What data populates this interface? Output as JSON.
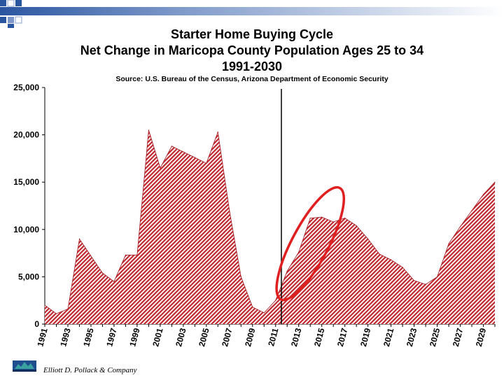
{
  "header": {
    "title_line1": "Starter Home Buying Cycle",
    "title_line2": "Net Change in Maricopa County Population Ages 25 to 34",
    "title_line3": "1991-2030",
    "source": "Source: U.S. Bureau of the Census, Arizona Department of Economic Security"
  },
  "footer": {
    "credit": "Elliott D. Pollack & Company"
  },
  "colors": {
    "fill": "#c0282f",
    "accent_blue": "#1f4e8f",
    "highlight": "#e02020"
  },
  "chart_data": {
    "type": "area",
    "title": "Starter Home Buying Cycle Net Change in Maricopa County Population Ages 25 to 34 1991-2030",
    "xlabel": "",
    "ylabel": "",
    "ylim": [
      0,
      25000
    ],
    "yticks": [
      0,
      5000,
      10000,
      15000,
      20000,
      25000
    ],
    "ytick_labels": [
      "0",
      "5,000",
      "10,000",
      "15,000",
      "20,000",
      "25,000"
    ],
    "xtick_labels": [
      "1991",
      "1993",
      "1995",
      "1997",
      "1999",
      "2001",
      "2003",
      "2005",
      "2007",
      "2009",
      "2011",
      "2013",
      "2015",
      "2017",
      "2019",
      "2021",
      "2023",
      "2025",
      "2027",
      "2029"
    ],
    "x": [
      1991,
      1992,
      1993,
      1994,
      1995,
      1996,
      1997,
      1998,
      1999,
      2000,
      2001,
      2002,
      2003,
      2004,
      2005,
      2006,
      2007,
      2008,
      2009,
      2010,
      2011,
      2012,
      2013,
      2014,
      2015,
      2016,
      2017,
      2018,
      2019,
      2020,
      2021,
      2022,
      2023,
      2024,
      2025,
      2026,
      2027,
      2028,
      2029,
      2030
    ],
    "series": [
      {
        "name": "Net Change in Population Ages 25 to 34",
        "values": [
          2000,
          1100,
          1600,
          9000,
          7200,
          5400,
          4500,
          7300,
          7300,
          20500,
          16500,
          18800,
          18200,
          17600,
          17000,
          20300,
          12000,
          5000,
          1800,
          1200,
          2500,
          5600,
          7600,
          11200,
          11300,
          10800,
          11200,
          10400,
          9000,
          7400,
          6800,
          6000,
          4600,
          4200,
          5000,
          8500,
          10300,
          12000,
          13700,
          15000
        ]
      }
    ],
    "annotations": [
      {
        "type": "vertical-line",
        "x": 2011.5
      },
      {
        "type": "ellipse-highlight",
        "x_center": 2014,
        "y_center": 8500
      }
    ]
  }
}
